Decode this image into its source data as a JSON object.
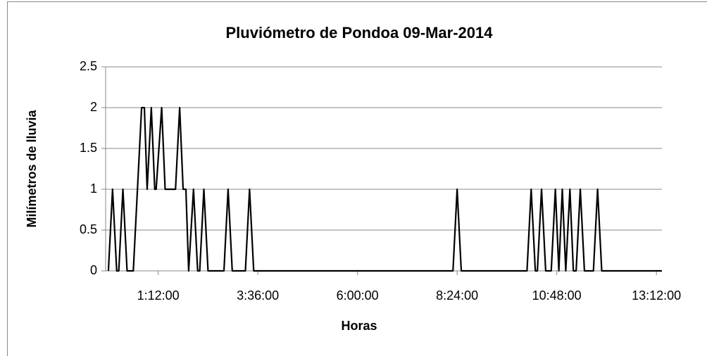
{
  "chart_data": {
    "type": "line",
    "title": "Pluviómetro de Pondoa 09-Mar-2014",
    "x_label": "Horas",
    "y_label": "Milímetros de lluvia",
    "x": [
      0,
      6,
      12,
      15,
      21,
      27,
      36,
      48,
      52,
      56,
      62,
      67,
      69,
      77,
      82,
      90,
      97,
      103,
      108,
      112,
      116,
      123,
      129,
      132,
      138,
      144,
      167,
      173,
      179,
      198,
      204,
      210,
      498,
      504,
      510,
      605,
      611,
      617,
      620,
      626,
      632,
      640,
      646,
      651,
      656,
      661,
      667,
      672,
      676,
      682,
      688,
      701,
      707,
      713,
      800
    ],
    "series": [
      {
        "name": "Milímetros de lluvia",
        "color": "#000000",
        "values": [
          0,
          1,
          0,
          0,
          1,
          0,
          0,
          2,
          2,
          1,
          2,
          1,
          1,
          2,
          1,
          1,
          1,
          2,
          1,
          1,
          0,
          1,
          0,
          0,
          1,
          0,
          0,
          1,
          0,
          0,
          1,
          0,
          0,
          1,
          0,
          0,
          1,
          0,
          0,
          1,
          0,
          0,
          1,
          0,
          1,
          0,
          1,
          0,
          0,
          1,
          0,
          0,
          1,
          0,
          0
        ]
      }
    ],
    "xlim": [
      -4,
      800
    ],
    "xticks": [
      {
        "value": 72,
        "label": "1:12:00"
      },
      {
        "value": 216,
        "label": "3:36:00"
      },
      {
        "value": 360,
        "label": "6:00:00"
      },
      {
        "value": 504,
        "label": "8:24:00"
      },
      {
        "value": 648,
        "label": "10:48:00"
      },
      {
        "value": 792,
        "label": "13:12:00"
      }
    ],
    "ylim": [
      0,
      2.5
    ],
    "yticks": [
      0,
      0.5,
      1,
      1.5,
      2,
      2.5
    ],
    "grid": true
  }
}
